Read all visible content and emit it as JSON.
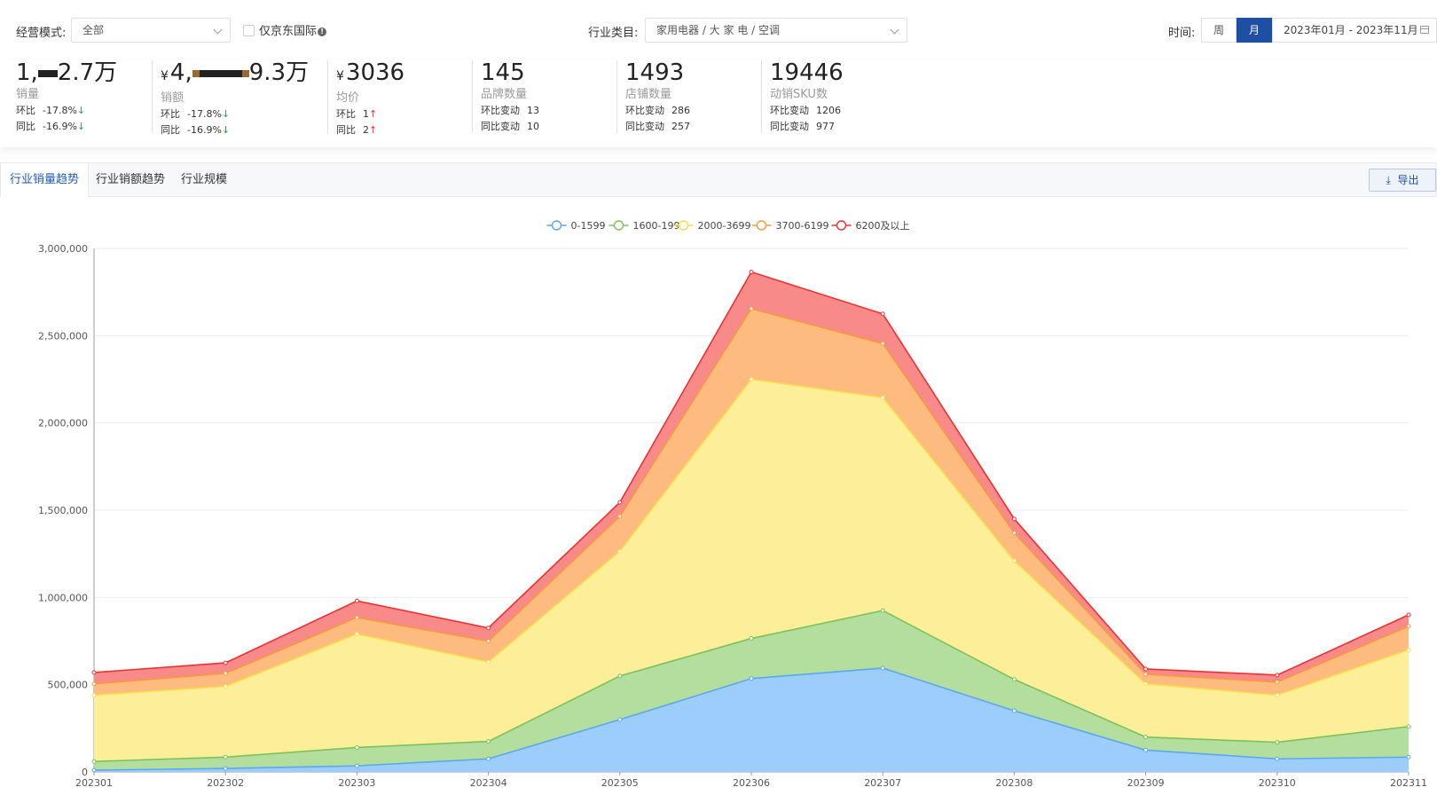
{
  "filters": {
    "mode_label": "经营模式:",
    "mode_value": "全部",
    "jd_intl_label": "仅京东国际",
    "category_label": "行业类目:",
    "category_value": "家用电器 / 大 家 电 / 空调",
    "time_label": "时间:",
    "week_label": "周",
    "month_label": "月",
    "date_range": "2023年01月 - 2023年11月"
  },
  "metrics": [
    {
      "value_prefix": "1,",
      "value_suffix": "2.7万",
      "label": "销量",
      "row1_label": "环比",
      "row1_value": "-17.8%",
      "row1_dir": "↓",
      "row2_label": "同比",
      "row2_value": "-16.9%",
      "row2_dir": "↓"
    },
    {
      "currency": "¥",
      "value_prefix": "4,",
      "value_suffix": "9.3万",
      "label": "销额",
      "row1_label": "环比",
      "row1_value": "-17.8%",
      "row1_dir": "↓",
      "row2_label": "同比",
      "row2_value": "-16.9%",
      "row2_dir": "↓"
    },
    {
      "currency": "¥",
      "value": "3036",
      "label": "均价",
      "row1_label": "环比",
      "row1_value": "1",
      "row1_dir": "↑",
      "row2_label": "同比",
      "row2_value": "2",
      "row2_dir": "↑"
    },
    {
      "value": "145",
      "label": "品牌数量",
      "row1_label": "环比变动",
      "row1_value": "13",
      "row2_label": "同比变动",
      "row2_value": "10"
    },
    {
      "value": "1493",
      "label": "店铺数量",
      "row1_label": "环比变动",
      "row1_value": "286",
      "row2_label": "同比变动",
      "row2_value": "257"
    },
    {
      "value": "19446",
      "label": "动销SKU数",
      "row1_label": "环比变动",
      "row1_value": "1206",
      "row2_label": "同比变动",
      "row2_value": "977"
    }
  ],
  "tabs": [
    "行业销量趋势",
    "行业销额趋势",
    "行业规模"
  ],
  "export_label": "导出",
  "colors": {
    "accent": "#1f4fa3",
    "up": "#ee3333",
    "down": "#2e9e4a"
  },
  "chart_data": {
    "type": "area",
    "stacked": true,
    "categories": [
      "202301",
      "202302",
      "202303",
      "202304",
      "202305",
      "202306",
      "202307",
      "202308",
      "202309",
      "202310",
      "202311"
    ],
    "ylim": [
      0,
      3000000
    ],
    "yticks": [
      0,
      500000,
      1000000,
      1500000,
      2000000,
      2500000,
      3000000
    ],
    "ytick_labels": [
      "0",
      "500,000",
      "1,000,000",
      "1,500,000",
      "2,000,000",
      "2,500,000",
      "3,000,000"
    ],
    "legend_position": "top-center",
    "grid": true,
    "series": [
      {
        "name": "0-1599",
        "color": "#5aa8f0",
        "fill": "#9ccdfb",
        "values": [
          10000,
          20000,
          35000,
          75000,
          300000,
          535000,
          595000,
          350000,
          125000,
          75000,
          85000
        ]
      },
      {
        "name": "1600-1999",
        "color": "#7cc25b",
        "fill": "#b3de9d",
        "values": [
          50000,
          65000,
          105000,
          100000,
          250000,
          230000,
          330000,
          180000,
          75000,
          95000,
          175000
        ]
      },
      {
        "name": "2000-3699",
        "color": "#f5df4a",
        "fill": "#fdee9a",
        "values": [
          380000,
          405000,
          650000,
          455000,
          715000,
          1485000,
          1220000,
          680000,
          305000,
          270000,
          440000
        ]
      },
      {
        "name": "3700-6199",
        "color": "#f59a3c",
        "fill": "#fdbb80",
        "values": [
          65000,
          75000,
          95000,
          120000,
          200000,
          405000,
          310000,
          160000,
          55000,
          75000,
          135000
        ]
      },
      {
        "name": "6200及以上",
        "color": "#ee3030",
        "fill": "#f98a8a",
        "values": [
          65000,
          60000,
          95000,
          75000,
          80000,
          210000,
          170000,
          80000,
          30000,
          40000,
          65000
        ]
      }
    ]
  }
}
